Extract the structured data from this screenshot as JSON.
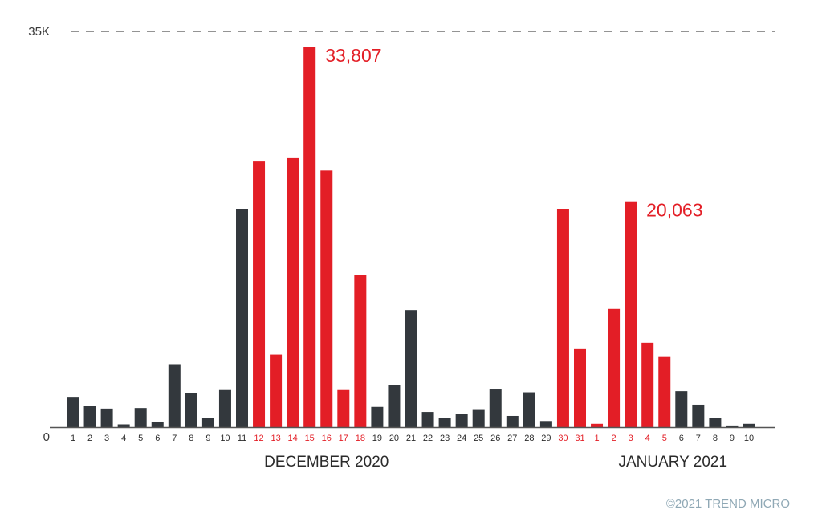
{
  "chart_data": {
    "type": "bar",
    "yaxis": {
      "min_label": "0",
      "max_label": "35K",
      "ylim": [
        0,
        35000
      ]
    },
    "groups": [
      {
        "label": "DECEMBER 2020",
        "start_index": 0,
        "end_index": 30
      },
      {
        "label": "JANUARY 2021",
        "start_index": 31,
        "end_index": 40
      }
    ],
    "categories": [
      "1",
      "2",
      "3",
      "4",
      "5",
      "6",
      "7",
      "8",
      "9",
      "10",
      "11",
      "12",
      "13",
      "14",
      "15",
      "16",
      "17",
      "18",
      "19",
      "20",
      "21",
      "22",
      "23",
      "24",
      "25",
      "26",
      "27",
      "28",
      "29",
      "30",
      "31",
      "1",
      "2",
      "3",
      "4",
      "5",
      "6",
      "7",
      "8",
      "9",
      "10"
    ],
    "values": [
      2700,
      1900,
      1650,
      250,
      1700,
      500,
      5600,
      3000,
      850,
      3300,
      19400,
      23600,
      6450,
      23900,
      33807,
      22800,
      3300,
      13500,
      1800,
      3750,
      10400,
      1350,
      800,
      1150,
      1600,
      3350,
      1000,
      3100,
      550,
      19400,
      7000,
      300,
      10500,
      20063,
      7500,
      6300,
      3200,
      2000,
      850,
      150,
      300
    ],
    "highlighted": [
      false,
      false,
      false,
      false,
      false,
      false,
      false,
      false,
      false,
      false,
      false,
      true,
      true,
      true,
      true,
      true,
      true,
      true,
      false,
      false,
      false,
      false,
      false,
      false,
      false,
      false,
      false,
      false,
      false,
      true,
      true,
      true,
      true,
      true,
      true,
      true,
      false,
      false,
      false,
      false,
      false
    ],
    "annotations": [
      {
        "index": 14,
        "text": "33,807"
      },
      {
        "index": 33,
        "text": "20,063"
      }
    ],
    "colors": {
      "normal": "#33383d",
      "highlight": "#e31e26",
      "gridline": "#555555",
      "axis": "#555555"
    },
    "gridline_at": 35000,
    "gridline_style": "dashed"
  },
  "credit": "©2021 TREND MICRO"
}
